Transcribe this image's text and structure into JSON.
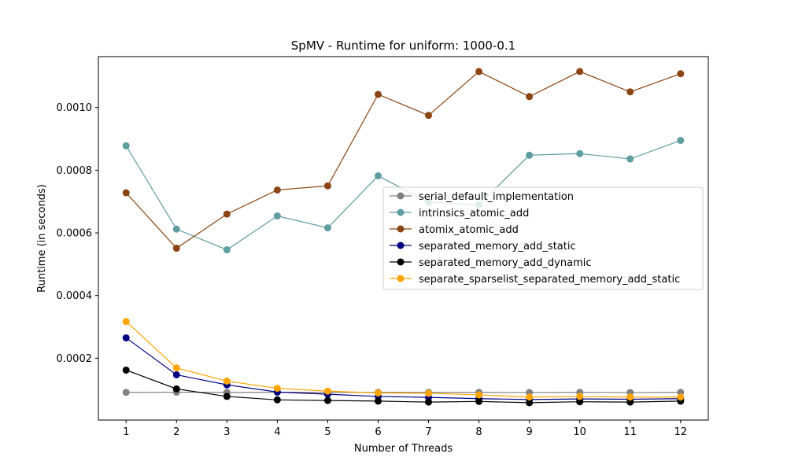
{
  "chart_data": {
    "type": "line",
    "title": "SpMV - Runtime for uniform: 1000-0.1",
    "xlabel": "Number of Threads",
    "ylabel": "Runtime (in seconds)",
    "x": [
      1,
      2,
      3,
      4,
      5,
      6,
      7,
      8,
      9,
      10,
      11,
      12
    ],
    "xticks": [
      "1",
      "2",
      "3",
      "4",
      "5",
      "6",
      "7",
      "8",
      "9",
      "10",
      "11",
      "12"
    ],
    "yticks": [
      {
        "value": 0.0002,
        "label": "0.0002"
      },
      {
        "value": 0.0004,
        "label": "0.0004"
      },
      {
        "value": 0.0006,
        "label": "0.0006"
      },
      {
        "value": 0.0008,
        "label": "0.0008"
      },
      {
        "value": 0.001,
        "label": "0.0010"
      }
    ],
    "xlim": [
      0.45,
      12.55
    ],
    "ylim": [
      2.5e-06,
      0.0011625
    ],
    "grid": false,
    "legend_position": "center-right",
    "series": [
      {
        "name": "serial_default_implementation",
        "color": "#808080",
        "values": [
          9.1e-05,
          9.15e-05,
          9.1e-05,
          9.1e-05,
          9.1e-05,
          9.1e-05,
          9.1e-05,
          9.1e-05,
          9.05e-05,
          9.1e-05,
          9.05e-05,
          9.1e-05
        ]
      },
      {
        "name": "intrinsics_atomic_add",
        "color": "#5f9ea0",
        "values": [
          0.000878,
          0.000612,
          0.000546,
          0.000654,
          0.000616,
          0.000782,
          0.000698,
          0.00069,
          0.000848,
          0.000853,
          0.000836,
          0.000895
        ]
      },
      {
        "name": "atomix_atomic_add",
        "color": "#8b4513",
        "values": [
          0.000728,
          0.000551,
          0.00066,
          0.000737,
          0.00075,
          0.001042,
          0.000975,
          0.001115,
          0.001035,
          0.001115,
          0.00105,
          0.001108
        ]
      },
      {
        "name": "separated_memory_add_static",
        "color": "#000080",
        "values": [
          0.000265,
          0.000147,
          0.000115,
          9.2e-05,
          8.5e-05,
          7.8e-05,
          7.5e-05,
          7.1e-05,
          6.8e-05,
          7e-05,
          6.9e-05,
          7.1e-05
        ]
      },
      {
        "name": "separated_memory_add_dynamic",
        "color": "#000000",
        "values": [
          0.000162,
          0.000102,
          7.8e-05,
          6.7e-05,
          6.5e-05,
          6.3e-05,
          6e-05,
          6.2e-05,
          5.8e-05,
          6.1e-05,
          6e-05,
          6.3e-05
        ]
      },
      {
        "name": "separate_sparselist_separated_memory_add_static",
        "color": "#ffa500",
        "values": [
          0.000317,
          0.000169,
          0.000127,
          0.000104,
          9.5e-05,
          8.9e-05,
          8.8e-05,
          8.3e-05,
          7.6e-05,
          7.8e-05,
          7.6e-05,
          7.6e-05
        ]
      }
    ]
  }
}
